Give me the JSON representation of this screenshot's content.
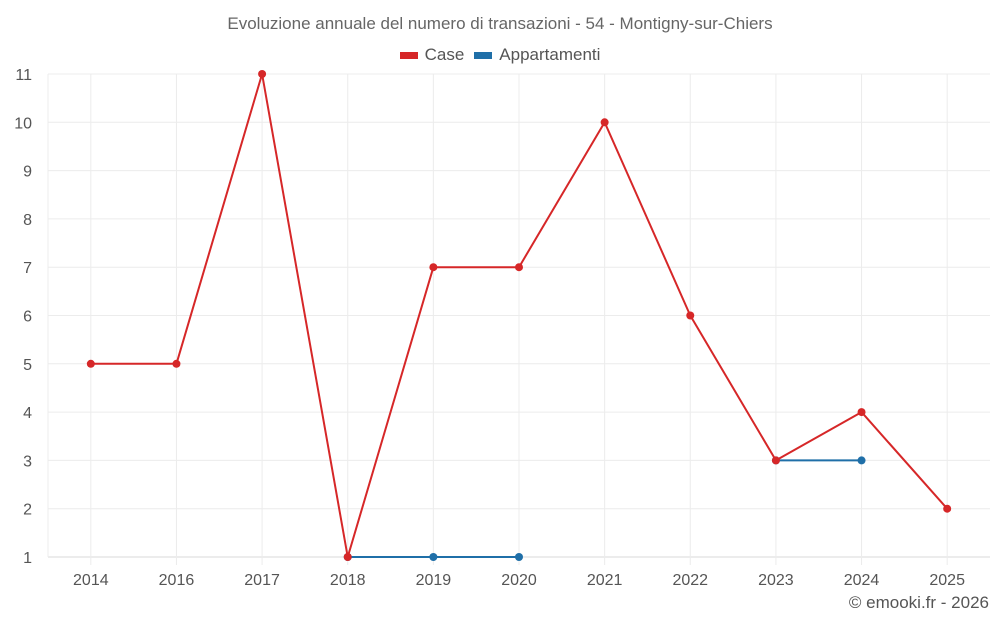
{
  "chart_data": {
    "type": "line",
    "title": "Evoluzione annuale del numero di transazioni - 54 - Montigny-sur-Chiers",
    "xlabel": "",
    "ylabel": "",
    "categories": [
      "2014",
      "2016",
      "2017",
      "2018",
      "2019",
      "2020",
      "2021",
      "2022",
      "2023",
      "2024",
      "2025"
    ],
    "yticks": [
      1,
      2,
      3,
      4,
      5,
      6,
      7,
      8,
      9,
      10,
      11
    ],
    "ylim": [
      1,
      11
    ],
    "grid": true,
    "legend_position": "top",
    "series": [
      {
        "name": "Case",
        "color": "#d62728",
        "values": [
          5,
          5,
          11,
          1,
          7,
          7,
          10,
          6,
          3,
          4,
          2
        ]
      },
      {
        "name": "Appartamenti",
        "color": "#1f6fa8",
        "values": [
          null,
          null,
          null,
          1,
          1,
          1,
          null,
          null,
          3,
          3,
          null
        ]
      }
    ]
  },
  "footer": {
    "credit": "© emooki.fr - 2026"
  }
}
